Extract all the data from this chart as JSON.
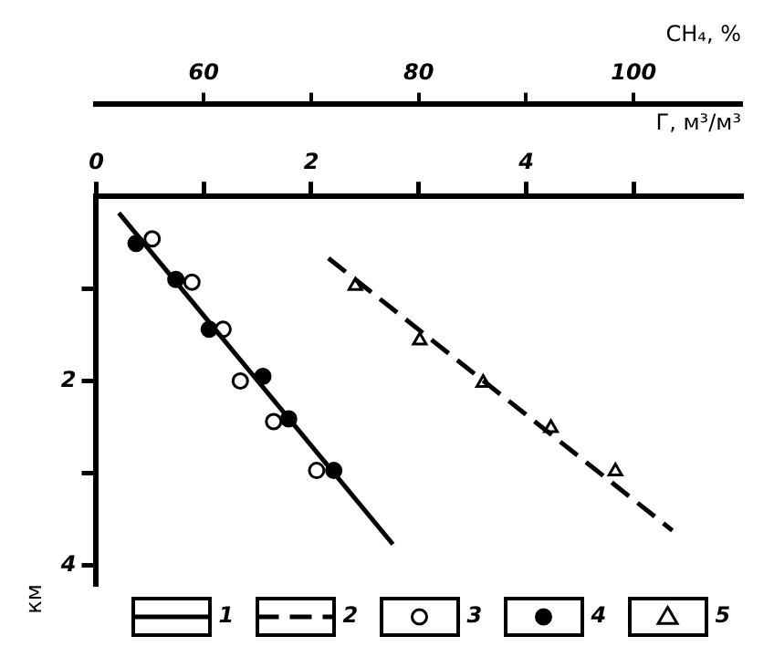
{
  "chart_data": {
    "type": "line",
    "xlabel": "Г, м³/м³",
    "x2label": "CH₄, %",
    "ylabel": "км",
    "xlim": [
      0,
      6
    ],
    "xticks": [
      0,
      {
        "value": 1,
        "label": null
      },
      2,
      {
        "value": 3,
        "label": null
      },
      4,
      {
        "value": 5,
        "label": null
      }
    ],
    "x2lim": [
      50,
      110
    ],
    "x2ticks": [
      60,
      {
        "value": 70,
        "label": null
      },
      80,
      {
        "value": 90,
        "label": null
      },
      100
    ],
    "ylim": [
      4.2,
      0
    ],
    "yticks": [
      {
        "value": 1,
        "label": null
      },
      2,
      {
        "value": 3,
        "label": null
      },
      4
    ],
    "grid": false,
    "legend": "bottom",
    "series": [
      {
        "name": "1",
        "color": "#000000",
        "marker": "none",
        "line_style": "solid",
        "x": [
          0.21,
          2.76
        ],
        "values": [
          0.18,
          3.77
        ]
      },
      {
        "name": "2",
        "axis": "x2",
        "color": "#000000",
        "marker": "none",
        "line_style": "dashed",
        "x": [
          71.6,
          103.6
        ],
        "values": [
          0.67,
          3.62
        ]
      },
      {
        "name": "3",
        "type": "scatter",
        "color": "#ffffff",
        "marker": "circle",
        "x": [
          0.52,
          0.89,
          1.18,
          1.34,
          1.65,
          2.05
        ],
        "values": [
          0.46,
          0.93,
          1.44,
          2.0,
          2.44,
          2.97
        ]
      },
      {
        "name": "4",
        "type": "scatter",
        "color": "#000000",
        "marker": "circle",
        "x": [
          0.37,
          0.74,
          1.05,
          1.55,
          1.79,
          2.21
        ],
        "values": [
          0.51,
          0.9,
          1.44,
          1.95,
          2.41,
          2.97
        ]
      },
      {
        "name": "5",
        "type": "scatter",
        "axis": "x2",
        "color": "#ffffff",
        "marker": "triangle",
        "x": [
          74.1,
          80.1,
          86.0,
          92.3,
          98.3
        ],
        "values": [
          0.97,
          1.56,
          2.02,
          2.51,
          2.98
        ]
      }
    ]
  }
}
